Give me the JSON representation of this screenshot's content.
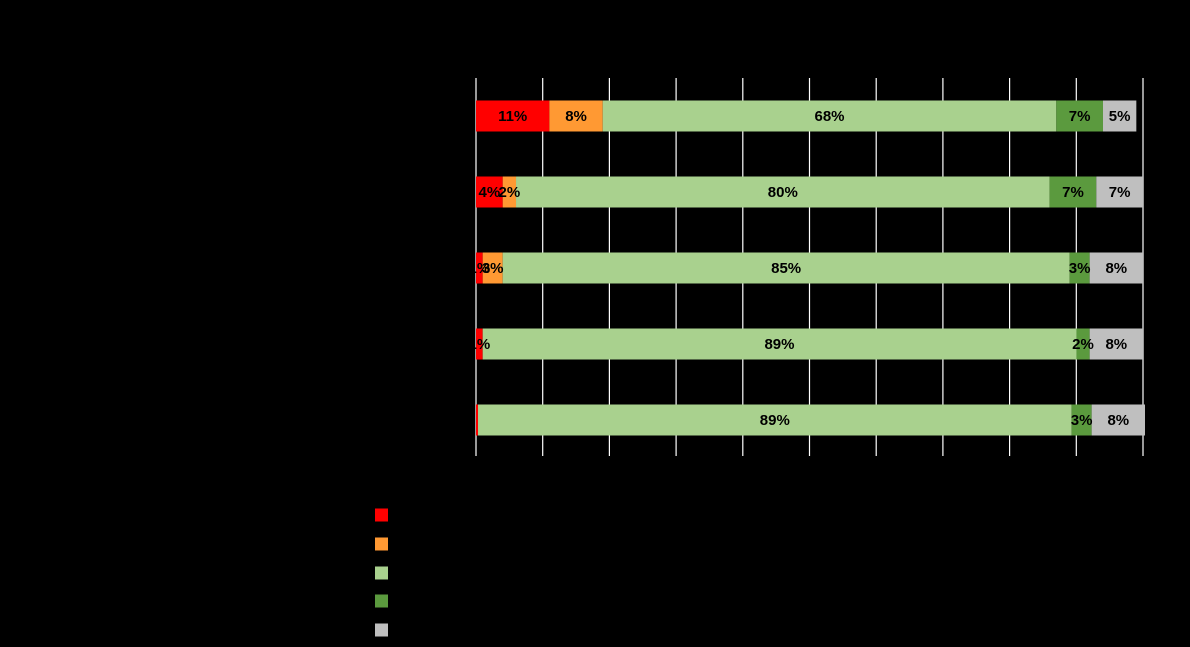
{
  "chart_data": {
    "type": "bar",
    "orientation": "horizontal",
    "stacked": true,
    "percent_scale": true,
    "title": "",
    "xlabel": "",
    "ylabel": "",
    "xlim": [
      0,
      100
    ],
    "grid": true,
    "legend_position": "bottom",
    "categories": [
      "",
      "",
      "",
      "",
      ""
    ],
    "series": [
      {
        "color": "#ff0000",
        "values": [
          11,
          4,
          1,
          1,
          0.3
        ],
        "labels": [
          "11%",
          "4%",
          "1%",
          "1%",
          ""
        ]
      },
      {
        "color": "#ff9933",
        "values": [
          8,
          2,
          3,
          0,
          0
        ],
        "labels": [
          "8%",
          "2%",
          "3%",
          "",
          ""
        ]
      },
      {
        "color": "#a9d18e",
        "values": [
          68,
          80,
          85,
          89,
          89
        ],
        "labels": [
          "68%",
          "80%",
          "85%",
          "89%",
          "89%"
        ]
      },
      {
        "color": "#5b9a3e",
        "values": [
          7,
          7,
          3,
          2,
          3
        ],
        "labels": [
          "7%",
          "7%",
          "3%",
          "2%",
          "3%"
        ]
      },
      {
        "color": "#bfbfbf",
        "values": [
          5,
          7,
          8,
          8,
          8
        ],
        "labels": [
          "5%",
          "7%",
          "8%",
          "8%",
          "8%"
        ]
      }
    ]
  }
}
